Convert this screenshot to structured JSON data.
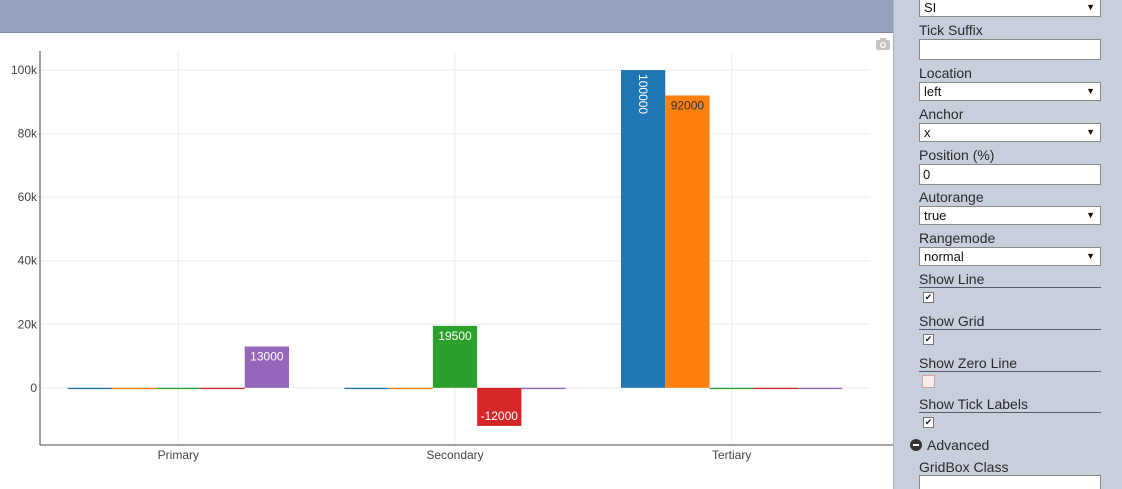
{
  "chart_data": {
    "type": "bar",
    "categories": [
      "Primary",
      "Secondary",
      "Tertiary"
    ],
    "series": [
      {
        "values": [
          0,
          0,
          100000
        ],
        "color": "#1f77b4"
      },
      {
        "values": [
          0,
          0,
          92000
        ],
        "color": "#ff7f0e"
      },
      {
        "values": [
          0,
          19500,
          0
        ],
        "color": "#2ca02c"
      },
      {
        "values": [
          0,
          -12000,
          0
        ],
        "color": "#d62728"
      },
      {
        "values": [
          13000,
          0,
          0
        ],
        "color": "#9467bd"
      }
    ],
    "data_labels": [
      {
        "series": 0,
        "category": 2,
        "text": "100000",
        "rotated": true
      },
      {
        "series": 1,
        "category": 2,
        "text": "92000"
      },
      {
        "series": 2,
        "category": 1,
        "text": "19500"
      },
      {
        "series": 3,
        "category": 1,
        "text": "-12000"
      },
      {
        "series": 4,
        "category": 0,
        "text": "13000"
      }
    ],
    "y_ticks": [
      0,
      20000,
      40000,
      60000,
      80000,
      100000
    ],
    "y_tick_labels": [
      "0",
      "20k",
      "40k",
      "60k",
      "80k",
      "100k"
    ],
    "ylim": [
      -18000,
      106000
    ],
    "grid": true
  },
  "settings": {
    "exponent_format_value": "SI",
    "tick_suffix_label": "Tick Suffix",
    "tick_suffix_value": "",
    "location_label": "Location",
    "location_value": "left",
    "anchor_label": "Anchor",
    "anchor_value": "x",
    "position_label": "Position (%)",
    "position_value": "0",
    "autorange_label": "Autorange",
    "autorange_value": "true",
    "rangemode_label": "Rangemode",
    "rangemode_value": "normal",
    "show_line_label": "Show Line",
    "show_line_checked": true,
    "show_grid_label": "Show Grid",
    "show_grid_checked": true,
    "show_zero_line_label": "Show Zero Line",
    "show_zero_line_checked": false,
    "show_tick_labels_label": "Show Tick Labels",
    "show_tick_labels_checked": true,
    "advanced_label": "Advanced",
    "gridbox_class_label": "GridBox Class",
    "gridbox_class_value": "",
    "check_glyph": "✔",
    "dropdown_arrow": "▼"
  }
}
